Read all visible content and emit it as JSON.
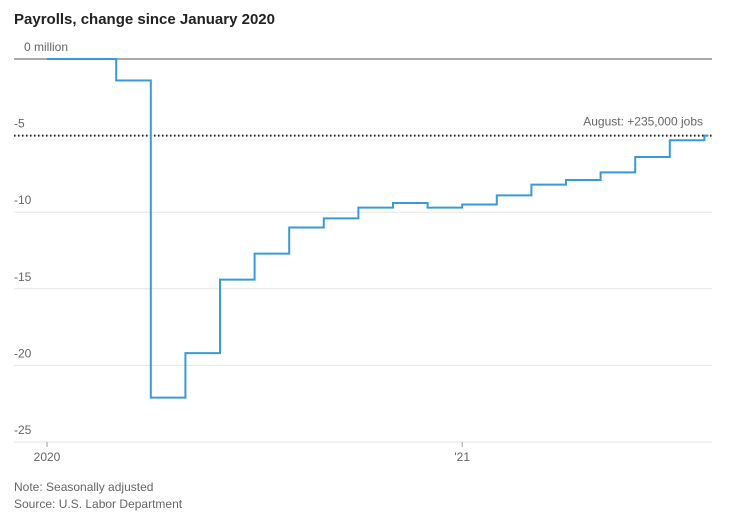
{
  "chart_data": {
    "type": "step",
    "title": "Payrolls, change since January 2020",
    "categories": [
      "2020",
      null,
      null,
      null,
      null,
      null,
      null,
      null,
      null,
      null,
      null,
      null,
      "'21",
      null,
      null,
      null,
      null,
      null,
      null,
      null
    ],
    "series": [
      {
        "name": "Payrolls",
        "color": "#3a9ad9",
        "values": [
          0,
          0,
          -1.4,
          -22.1,
          -19.2,
          -14.4,
          -12.7,
          -11.0,
          -10.4,
          -9.7,
          -9.4,
          -9.7,
          -9.5,
          -8.9,
          -8.2,
          -7.9,
          -7.4,
          -6.4,
          -5.3,
          -5.0
        ]
      }
    ],
    "ylim": [
      -25,
      0
    ],
    "yticks": [
      {
        "value": 0,
        "label": "0 million"
      },
      -5,
      -10,
      -15,
      -20,
      -25
    ],
    "annotation": "August: +235,000 jobs",
    "note": "Note: Seasonally adjusted",
    "source": "Source: U.S. Labor Department",
    "grid": true
  }
}
